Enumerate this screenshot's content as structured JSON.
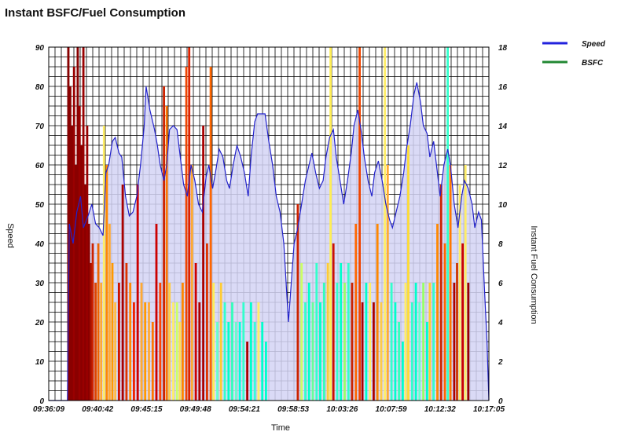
{
  "title": "Instant BSFC/Fuel Consumption",
  "chart_data": {
    "type": "area",
    "title": "Instant BSFC/Fuel Consumption",
    "xlabel": "Time",
    "ylabel": "Speed",
    "y2label": "Instant Fuel Consumption",
    "ylim": [
      0,
      90
    ],
    "y2lim": [
      0,
      18
    ],
    "grid": true,
    "legend_position": "top-right",
    "x_tick_labels": [
      "09:36:09",
      "09:40:42",
      "09:45:15",
      "09:49:48",
      "09:54:21",
      "09:58:53",
      "10:03:26",
      "10:07:59",
      "10:12:32",
      "10:17:05"
    ],
    "y_tick_labels": [
      "0",
      "10",
      "20",
      "30",
      "40",
      "50",
      "60",
      "70",
      "80",
      "90"
    ],
    "y2_tick_labels": [
      "0",
      "2",
      "4",
      "6",
      "8",
      "10",
      "12",
      "14",
      "16",
      "18"
    ],
    "x_minutes_range": [
      0,
      41
    ],
    "legend": [
      {
        "name": "Speed",
        "color": "#2222dd"
      },
      {
        "name": "BSFC",
        "color": "#228833"
      }
    ],
    "speed": {
      "name": "Speed",
      "color": "#2222cc",
      "fill": "#d4d4f4",
      "points": [
        [
          0,
          0
        ],
        [
          2.0,
          0
        ],
        [
          2.2,
          45
        ],
        [
          2.6,
          40
        ],
        [
          3.0,
          48
        ],
        [
          3.4,
          52
        ],
        [
          3.7,
          44
        ],
        [
          4.2,
          47
        ],
        [
          4.6,
          50
        ],
        [
          5.0,
          45
        ],
        [
          5.4,
          44
        ],
        [
          5.8,
          42
        ],
        [
          6.1,
          58
        ],
        [
          6.4,
          60
        ],
        [
          6.8,
          66
        ],
        [
          7.1,
          67
        ],
        [
          7.5,
          63
        ],
        [
          7.8,
          62
        ],
        [
          8.2,
          52
        ],
        [
          8.6,
          47
        ],
        [
          9.0,
          48
        ],
        [
          9.4,
          52
        ],
        [
          9.8,
          60
        ],
        [
          10.2,
          70
        ],
        [
          10.4,
          80
        ],
        [
          10.8,
          74
        ],
        [
          11.3,
          69
        ],
        [
          11.6,
          65
        ],
        [
          11.9,
          60
        ],
        [
          12.3,
          56
        ],
        [
          12.6,
          60
        ],
        [
          12.9,
          69
        ],
        [
          13.3,
          70
        ],
        [
          13.7,
          69
        ],
        [
          14.0,
          63
        ],
        [
          14.4,
          55
        ],
        [
          14.8,
          52
        ],
        [
          15.2,
          60
        ],
        [
          15.6,
          56
        ],
        [
          16.0,
          50
        ],
        [
          16.4,
          48
        ],
        [
          16.8,
          57
        ],
        [
          17.1,
          60
        ],
        [
          17.5,
          54
        ],
        [
          17.8,
          58
        ],
        [
          18.2,
          64
        ],
        [
          18.6,
          62
        ],
        [
          19.0,
          56
        ],
        [
          19.3,
          54
        ],
        [
          19.7,
          60
        ],
        [
          20.1,
          65
        ],
        [
          20.5,
          62
        ],
        [
          20.9,
          58
        ],
        [
          21.3,
          52
        ],
        [
          21.6,
          62
        ],
        [
          22.0,
          71
        ],
        [
          22.3,
          73
        ],
        [
          22.7,
          73
        ],
        [
          23.1,
          73
        ],
        [
          23.5,
          66
        ],
        [
          23.9,
          60
        ],
        [
          24.3,
          52
        ],
        [
          24.7,
          48
        ],
        [
          25.1,
          40
        ],
        [
          25.4,
          28
        ],
        [
          25.6,
          20
        ],
        [
          25.9,
          30
        ],
        [
          26.2,
          40
        ],
        [
          26.6,
          44
        ],
        [
          27.0,
          50
        ],
        [
          27.4,
          56
        ],
        [
          27.8,
          60
        ],
        [
          28.1,
          63
        ],
        [
          28.5,
          58
        ],
        [
          28.9,
          54
        ],
        [
          29.3,
          56
        ],
        [
          29.6,
          62
        ],
        [
          30.0,
          67
        ],
        [
          30.4,
          69
        ],
        [
          30.7,
          62
        ],
        [
          31.1,
          56
        ],
        [
          31.5,
          50
        ],
        [
          31.9,
          56
        ],
        [
          32.3,
          63
        ],
        [
          32.6,
          70
        ],
        [
          33.0,
          74
        ],
        [
          33.4,
          68
        ],
        [
          33.7,
          62
        ],
        [
          34.1,
          56
        ],
        [
          34.5,
          52
        ],
        [
          34.8,
          58
        ],
        [
          35.2,
          61
        ],
        [
          35.6,
          56
        ],
        [
          36.0,
          50
        ],
        [
          36.4,
          46
        ],
        [
          36.7,
          44
        ],
        [
          37.1,
          48
        ],
        [
          37.5,
          52
        ],
        [
          37.9,
          58
        ],
        [
          38.2,
          64
        ],
        [
          38.6,
          70
        ],
        [
          39.0,
          78
        ],
        [
          39.3,
          81
        ],
        [
          39.7,
          76
        ],
        [
          40.0,
          70
        ],
        [
          40.4,
          68
        ],
        [
          40.7,
          62
        ],
        [
          41.1,
          66
        ],
        [
          41.5,
          58
        ],
        [
          41.8,
          52
        ],
        [
          42.2,
          60
        ],
        [
          42.6,
          64
        ],
        [
          42.9,
          60
        ],
        [
          43.3,
          50
        ],
        [
          43.7,
          44
        ],
        [
          44.1,
          52
        ],
        [
          44.4,
          56
        ],
        [
          44.8,
          54
        ],
        [
          45.2,
          50
        ],
        [
          45.5,
          44
        ],
        [
          45.9,
          48
        ],
        [
          46.2,
          46
        ],
        [
          46.5,
          30
        ],
        [
          46.8,
          15
        ],
        [
          47.0,
          0
        ]
      ]
    },
    "fuel_bars_minutes": [
      [
        2.1,
        18,
        "#8a0000"
      ],
      [
        2.3,
        16,
        "#8a0000"
      ],
      [
        2.5,
        14,
        "#8a0000"
      ],
      [
        2.7,
        17,
        "#990000"
      ],
      [
        2.9,
        12,
        "#8a0000"
      ],
      [
        3.1,
        18,
        "#8a0000"
      ],
      [
        3.3,
        15,
        "#990000"
      ],
      [
        3.5,
        13,
        "#8a0000"
      ],
      [
        3.7,
        18,
        "#990000"
      ],
      [
        3.9,
        11,
        "#8a0000"
      ],
      [
        4.1,
        14,
        "#990000"
      ],
      [
        4.3,
        9,
        "#8a0000"
      ],
      [
        4.5,
        7,
        "#aa1100"
      ],
      [
        4.7,
        8,
        "#cc2200"
      ],
      [
        5.0,
        6,
        "#dd4400"
      ],
      [
        5.3,
        8,
        "#ee6600"
      ],
      [
        5.6,
        6,
        "#ffaa33"
      ],
      [
        5.9,
        14,
        "#ffee66"
      ],
      [
        6.2,
        12,
        "#ff8800"
      ],
      [
        6.5,
        9,
        "#ffaa33"
      ],
      [
        6.8,
        7,
        "#ff9900"
      ],
      [
        7.1,
        5,
        "#ffbb44"
      ],
      [
        7.5,
        6,
        "#cc1100"
      ],
      [
        7.9,
        11,
        "#aa0000"
      ],
      [
        8.3,
        7,
        "#dd3300"
      ],
      [
        8.7,
        6,
        "#ff8800"
      ],
      [
        9.1,
        5,
        "#ee2200"
      ],
      [
        9.5,
        11,
        "#cc0000"
      ],
      [
        9.9,
        6,
        "#ffaa33"
      ],
      [
        10.3,
        5,
        "#ff9900"
      ],
      [
        10.7,
        5,
        "#ffaa33"
      ],
      [
        11.1,
        4,
        "#ff7700"
      ],
      [
        11.5,
        9,
        "#cc0000"
      ],
      [
        11.9,
        6,
        "#ff4400"
      ],
      [
        12.3,
        16,
        "#cc2200"
      ],
      [
        12.6,
        15,
        "#ff7700"
      ],
      [
        12.9,
        6,
        "#ffcc44"
      ],
      [
        13.3,
        5,
        "#ffee66"
      ],
      [
        13.7,
        5,
        "#ccff66"
      ],
      [
        14.0,
        4,
        "#ffdd55"
      ],
      [
        14.3,
        6,
        "#ff8800"
      ],
      [
        14.7,
        17,
        "#ee4400"
      ],
      [
        15.0,
        18,
        "#dd2200"
      ],
      [
        15.3,
        12,
        "#ffaa33"
      ],
      [
        15.7,
        7,
        "#cc0000"
      ],
      [
        16.1,
        5,
        "#aa0000"
      ],
      [
        16.5,
        14,
        "#aa0000"
      ],
      [
        16.9,
        8,
        "#dd3300"
      ],
      [
        17.3,
        17,
        "#ff6600"
      ],
      [
        17.6,
        6,
        "#ffee55"
      ],
      [
        18.0,
        4,
        "#66ffcc"
      ],
      [
        18.4,
        6,
        "#ffcc33"
      ],
      [
        18.8,
        5,
        "#33ffcc"
      ],
      [
        19.2,
        4,
        "#00ffcc"
      ],
      [
        19.6,
        5,
        "#33ffbb"
      ],
      [
        20.0,
        4,
        "#66ffcc"
      ],
      [
        20.4,
        4,
        "#00ffdd"
      ],
      [
        20.8,
        5,
        "#33ffcc"
      ],
      [
        21.2,
        3,
        "#aa0000"
      ],
      [
        21.6,
        5,
        "#00ffcc"
      ],
      [
        22.0,
        4,
        "#33ffdd"
      ],
      [
        22.4,
        5,
        "#ffee66"
      ],
      [
        22.8,
        4,
        "#00ffcc"
      ],
      [
        23.2,
        3,
        "#00ffcc"
      ],
      [
        26.6,
        10,
        "#cc2200"
      ],
      [
        27.0,
        7,
        "#ccff66"
      ],
      [
        27.4,
        5,
        "#33ffcc"
      ],
      [
        27.8,
        6,
        "#00ffcc"
      ],
      [
        28.2,
        5,
        "#66ff99"
      ],
      [
        28.6,
        7,
        "#33ffcc"
      ],
      [
        29.0,
        5,
        "#00ffcc"
      ],
      [
        29.4,
        6,
        "#33ffbb"
      ],
      [
        29.8,
        7,
        "#ffcc33"
      ],
      [
        30.1,
        18,
        "#ffee55"
      ],
      [
        30.4,
        8,
        "#cc1100"
      ],
      [
        30.8,
        6,
        "#33ffcc"
      ],
      [
        31.2,
        7,
        "#00ffcc"
      ],
      [
        31.6,
        6,
        "#99ff66"
      ],
      [
        32.0,
        7,
        "#33ffcc"
      ],
      [
        32.4,
        6,
        "#cc2200"
      ],
      [
        32.8,
        9,
        "#ff6600"
      ],
      [
        33.2,
        18,
        "#ee4400"
      ],
      [
        33.5,
        5,
        "#aa0000"
      ],
      [
        33.9,
        6,
        "#00ffcc"
      ],
      [
        34.3,
        6,
        "#ffee66"
      ],
      [
        34.7,
        5,
        "#aa0000"
      ],
      [
        35.1,
        9,
        "#ff8800"
      ],
      [
        35.5,
        5,
        "#ffcc44"
      ],
      [
        35.9,
        18,
        "#ffee66"
      ],
      [
        36.2,
        12,
        "#ffaa33"
      ],
      [
        36.6,
        6,
        "#33ffcc"
      ],
      [
        37.0,
        5,
        "#00ffcc"
      ],
      [
        37.4,
        4,
        "#33ffbb"
      ],
      [
        37.8,
        3,
        "#00ffcc"
      ],
      [
        38.1,
        6,
        "#ffee66"
      ],
      [
        38.4,
        13,
        "#ffdd33"
      ],
      [
        38.8,
        5,
        "#33ffcc"
      ],
      [
        39.2,
        6,
        "#00ffcc"
      ],
      [
        39.6,
        5,
        "#66ffcc"
      ],
      [
        40.0,
        6,
        "#99ff66"
      ],
      [
        40.4,
        4,
        "#00ffcc"
      ],
      [
        40.7,
        6,
        "#ffcc33"
      ],
      [
        41.1,
        6,
        "#33ffcc"
      ],
      [
        41.5,
        9,
        "#ff8800"
      ],
      [
        41.9,
        11,
        "#cc2200"
      ],
      [
        42.3,
        8,
        "#ff6600"
      ],
      [
        42.6,
        18,
        "#33ffcc"
      ],
      [
        42.9,
        12,
        "#ff7700"
      ],
      [
        43.3,
        6,
        "#aa0000"
      ],
      [
        43.6,
        7,
        "#cc3300"
      ],
      [
        43.9,
        11,
        "#ffee66"
      ],
      [
        44.2,
        8,
        "#cc0000"
      ],
      [
        44.5,
        12,
        "#ffee66"
      ],
      [
        44.8,
        6,
        "#990000"
      ]
    ]
  }
}
